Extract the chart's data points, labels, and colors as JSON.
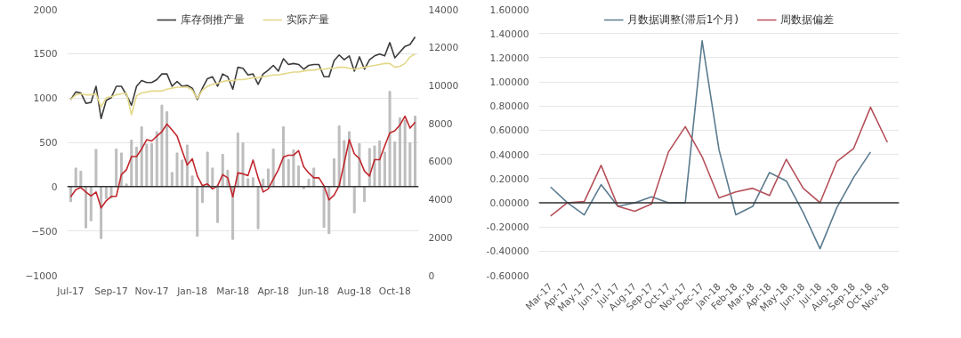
{
  "chart_data": [
    {
      "type": "bar",
      "categories": [
        "Jul-17",
        null,
        null,
        null,
        null,
        null,
        null,
        null,
        "Sep-17",
        null,
        null,
        null,
        null,
        null,
        null,
        null,
        "Nov-17",
        null,
        null,
        null,
        null,
        null,
        null,
        null,
        "Jan-18",
        null,
        null,
        null,
        null,
        null,
        null,
        null,
        "Mar-18",
        null,
        null,
        null,
        null,
        null,
        null,
        null,
        "Apr-18",
        null,
        null,
        null,
        null,
        null,
        null,
        null,
        "Jun-18",
        null,
        null,
        null,
        null,
        null,
        null,
        null,
        "Aug-18",
        null,
        null,
        null,
        null,
        null,
        null,
        null,
        "Oct-18",
        null,
        null,
        null,
        null
      ],
      "series": [
        {
          "type": "bar",
          "color": "#bdbdbd",
          "values": [
            -170,
            210,
            175,
            -465,
            -385,
            420,
            -585,
            -135,
            -130,
            425,
            380,
            30,
            525,
            445,
            675,
            480,
            485,
            620,
            920,
            845,
            160,
            380,
            300,
            470,
            120,
            -560,
            -180,
            390,
            210,
            -405,
            365,
            185,
            -595,
            605,
            495,
            90,
            100,
            -475,
            85,
            200,
            425,
            null,
            675,
            305,
            415,
            235,
            -25,
            85,
            210,
            null,
            -460,
            -530,
            315,
            685,
            520,
            620,
            -295,
            485,
            -170,
            430,
            460,
            515,
            390,
            1075,
            505,
            775,
            750,
            495,
            795
          ]
        },
        {
          "type": "line",
          "color": "#c0272d",
          "values": [
            -115,
            -35,
            -10,
            -60,
            -105,
            -60,
            -240,
            -160,
            -110,
            -110,
            135,
            190,
            340,
            340,
            425,
            530,
            515,
            570,
            620,
            705,
            640,
            570,
            405,
            245,
            315,
            120,
            10,
            30,
            -25,
            10,
            135,
            100,
            -115,
            155,
            145,
            125,
            300,
            100,
            -60,
            -25,
            85,
            190,
            335,
            355,
            355,
            405,
            225,
            155,
            100,
            100,
            10,
            -150,
            -95,
            10,
            265,
            530,
            370,
            315,
            175,
            120,
            305,
            305,
            460,
            605,
            630,
            695,
            795,
            660,
            725
          ]
        },
        {
          "name": "库存倒推产量",
          "type": "line",
          "axis": "y2",
          "color": "#3c3c3c",
          "values": [
            9250,
            9650,
            9600,
            9050,
            9100,
            9950,
            8250,
            9200,
            9350,
            9950,
            9950,
            9500,
            8950,
            9950,
            10250,
            10150,
            10150,
            10300,
            10600,
            10600,
            9950,
            10200,
            9950,
            10000,
            9850,
            9250,
            9850,
            10350,
            10450,
            9950,
            10600,
            10450,
            9800,
            10950,
            10900,
            10550,
            10600,
            10050,
            10600,
            10800,
            11050,
            10750,
            11400,
            11100,
            11150,
            11100,
            10850,
            11050,
            11100,
            11100,
            10450,
            10450,
            11300,
            11600,
            11350,
            11550,
            10750,
            11500,
            10850,
            11350,
            11550,
            11650,
            11550,
            12250,
            11450,
            11750,
            12050,
            12150,
            12550
          ]
        },
        {
          "name": "实际产量",
          "type": "line",
          "axis": "y2",
          "color": "#e3d88a",
          "values": [
            9250,
            9500,
            9550,
            9500,
            9500,
            9550,
            8850,
            9350,
            9400,
            9500,
            9550,
            9600,
            8450,
            9450,
            9600,
            9650,
            9700,
            9700,
            9700,
            9800,
            9850,
            9900,
            9900,
            9900,
            9750,
            9300,
            9750,
            9950,
            10050,
            10100,
            10200,
            10250,
            10250,
            10300,
            10300,
            10350,
            10400,
            10400,
            10450,
            10500,
            10550,
            10550,
            10600,
            10650,
            10700,
            10700,
            10750,
            10800,
            10800,
            10850,
            10850,
            10900,
            10900,
            10950,
            10950,
            10900,
            10850,
            10900,
            10950,
            11000,
            11050,
            11100,
            11150,
            11150,
            10950,
            11000,
            11150,
            11500,
            11650
          ]
        }
      ],
      "ylim": [
        -1000,
        2000
      ],
      "yticks": [
        -1000,
        -500,
        0,
        500,
        1000,
        1500,
        2000
      ],
      "y2lim": [
        0,
        14000
      ],
      "y2ticks": [
        0,
        2000,
        4000,
        6000,
        8000,
        10000,
        12000,
        14000
      ],
      "ref_lines": [
        {
          "axis": "y",
          "value": 0,
          "color": "#333333"
        }
      ],
      "grid": "y",
      "legend": "top"
    },
    {
      "type": "line",
      "categories": [
        "Mar-17",
        "Apr-17",
        "May-17",
        "Jun-17",
        "Jul-17",
        "Aug-17",
        "Sep-17",
        "Oct-17",
        "Nov-17",
        "Dec-17",
        "Jan-18",
        "Feb-18",
        "Mar-18",
        "Apr-18",
        "May-18",
        "Jun-18",
        "Jul-18",
        "Aug-18",
        "Sep-18",
        "Oct-18",
        "Nov-18"
      ],
      "series": [
        {
          "name": "月数据调整(滞后1个月)",
          "color": "#5b7b8f",
          "values": [
            0.13,
            0.0,
            -0.1,
            0.15,
            -0.03,
            0.0,
            0.05,
            0.0,
            0.0,
            1.34,
            0.44,
            -0.1,
            -0.03,
            0.25,
            0.18,
            -0.08,
            -0.38,
            -0.04,
            0.21,
            0.42,
            null
          ]
        },
        {
          "name": "周数据偏差",
          "color": "#b5505a",
          "values": [
            -0.11,
            0.0,
            0.01,
            0.31,
            -0.03,
            -0.07,
            -0.01,
            0.42,
            0.63,
            0.38,
            0.04,
            0.09,
            0.12,
            0.06,
            0.36,
            0.12,
            0.0,
            0.34,
            0.45,
            0.79,
            0.5
          ]
        }
      ],
      "ylim": [
        -0.6,
        1.6
      ],
      "yticks": [
        {
          "value": -0.6,
          "label": "-0.60000"
        },
        {
          "value": -0.4,
          "label": "-0.40000"
        },
        {
          "value": -0.2,
          "label": "-0.20000"
        },
        {
          "value": 0,
          "label": "0.00000"
        },
        {
          "value": 0.2,
          "label": "0.20000"
        },
        {
          "value": 0.4,
          "label": "0.40000"
        },
        {
          "value": 0.6,
          "label": "0.60000"
        },
        {
          "value": 0.8,
          "label": "0.80000"
        },
        {
          "value": 1.0,
          "label": "1.00000"
        },
        {
          "value": 1.2,
          "label": "1.20000"
        },
        {
          "value": 1.4,
          "label": "1.40000"
        },
        {
          "value": 1.6,
          "label": "1.60000"
        }
      ],
      "ref_lines": [
        {
          "axis": "y",
          "value": 0,
          "color": "#333333"
        }
      ],
      "grid": "y",
      "legend": "top"
    }
  ]
}
